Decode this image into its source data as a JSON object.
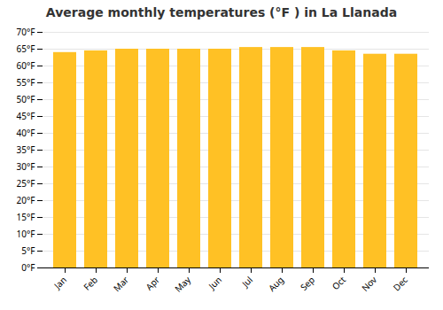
{
  "chart_data": {
    "type": "bar",
    "title": "Average monthly temperatures (°F ) in La Llanada",
    "categories": [
      "Jan",
      "Feb",
      "Mar",
      "Apr",
      "May",
      "Jun",
      "Jul",
      "Aug",
      "Sep",
      "Oct",
      "Nov",
      "Dec"
    ],
    "values": [
      64.0,
      64.5,
      65.0,
      65.0,
      65.0,
      65.0,
      65.5,
      65.5,
      65.5,
      64.5,
      63.5,
      63.5
    ],
    "color": "#FFC125",
    "ylim": [
      0,
      70
    ],
    "yticks": [
      {
        "value": 0,
        "label": "0°F"
      },
      {
        "value": 5,
        "label": "5°F"
      },
      {
        "value": 10,
        "label": "10°F"
      },
      {
        "value": 15,
        "label": "15°F"
      },
      {
        "value": 20,
        "label": "20°F"
      },
      {
        "value": 25,
        "label": "25°F"
      },
      {
        "value": 30,
        "label": "30°F"
      },
      {
        "value": 35,
        "label": "35°F"
      },
      {
        "value": 40,
        "label": "40°F"
      },
      {
        "value": 45,
        "label": "45°F"
      },
      {
        "value": 50,
        "label": "50°F"
      },
      {
        "value": 55,
        "label": "55°F"
      },
      {
        "value": 60,
        "label": "60°F"
      },
      {
        "value": 65,
        "label": "65°F"
      },
      {
        "value": 70,
        "label": "70°F"
      }
    ],
    "grid": true
  }
}
